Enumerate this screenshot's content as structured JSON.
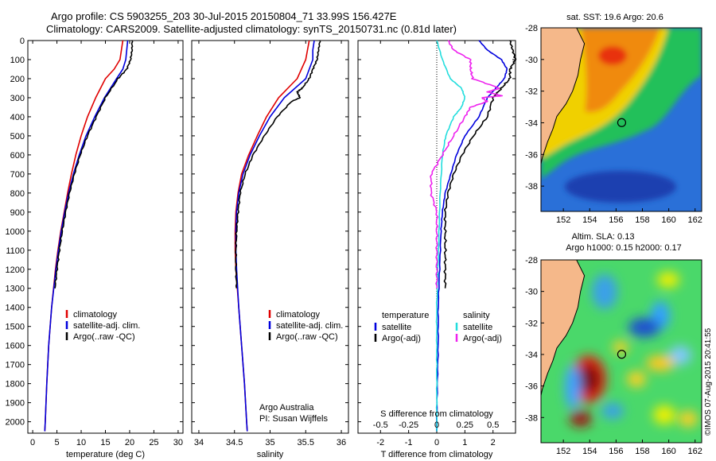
{
  "header": {
    "title_line1": "Argo profile: CS 5903255_203 30-Jul-2015 20150804_71 33.99S 156.427E",
    "title_line2": "Climatology: CARS2009. Satellite-adjusted climatology: synTS_20150731.nc (0.81d later)"
  },
  "footer": {
    "credit": "©IMOS 07-Aug-2015 20:41:55"
  },
  "colors": {
    "climatology": "#e00000",
    "satellite": "#0000dd",
    "argo": "#000000",
    "sat_sal_diff": "#22dddd",
    "argo_sal_diff": "#ee22ee",
    "land": "#f5b88a"
  },
  "chart_data": [
    {
      "id": "temperature",
      "type": "line",
      "xlabel": "temperature (deg C)",
      "xlim": [
        -1,
        31
      ],
      "ylim": [
        2060,
        0
      ],
      "xticks": [
        0,
        5,
        10,
        15,
        20,
        25,
        30
      ],
      "yticks": [
        0,
        100,
        200,
        300,
        400,
        500,
        600,
        700,
        800,
        900,
        1000,
        1100,
        1200,
        1300,
        1400,
        1500,
        1600,
        1700,
        1800,
        1900,
        2000
      ],
      "legend": {
        "position": "lower-left",
        "items": [
          "climatology",
          "satellite-adj. clim.",
          "Argo(..raw -QC)"
        ]
      },
      "series": [
        {
          "name": "climatology",
          "color": "#e00000",
          "depth": [
            0,
            100,
            150,
            200,
            300,
            400,
            500,
            600,
            700,
            800,
            900,
            1000,
            1100,
            1200,
            1400,
            1600,
            1800,
            2000,
            2050
          ],
          "values": [
            18.6,
            18.0,
            16.8,
            15.0,
            13.0,
            11.3,
            10.0,
            8.9,
            8.0,
            7.2,
            6.5,
            5.8,
            5.2,
            4.7,
            3.9,
            3.3,
            2.9,
            2.6,
            2.5
          ]
        },
        {
          "name": "satellite-adj. clim.",
          "color": "#0000dd",
          "depth": [
            0,
            100,
            150,
            200,
            300,
            400,
            500,
            600,
            700,
            800,
            900,
            1000,
            1100,
            1200,
            1400,
            1600,
            1800,
            2000,
            2050
          ],
          "values": [
            19.6,
            19.2,
            18.6,
            17.3,
            14.8,
            12.8,
            11.0,
            9.6,
            8.4,
            7.4,
            6.6,
            5.9,
            5.3,
            4.8,
            3.9,
            3.3,
            2.9,
            2.6,
            2.5
          ]
        },
        {
          "name": "Argo(..raw -QC)",
          "color": "#000000",
          "depth": [
            0,
            50,
            100,
            150,
            200,
            300,
            400,
            500,
            600,
            700,
            800,
            900,
            1000,
            1100,
            1200,
            1300
          ],
          "values": [
            20.5,
            20.5,
            20.2,
            19.4,
            17.6,
            15.0,
            13.1,
            11.3,
            9.8,
            8.6,
            7.6,
            6.8,
            6.1,
            5.5,
            5.0,
            4.6
          ]
        }
      ]
    },
    {
      "id": "salinity",
      "type": "line",
      "xlabel": "salinity",
      "xlim": [
        33.9,
        36.1
      ],
      "ylim": [
        2060,
        0
      ],
      "xticks": [
        34,
        34.5,
        35,
        35.5,
        36
      ],
      "legend": {
        "position": "lower-right",
        "items": [
          "climatology",
          "satellite-adj. clim.",
          "Argo(..raw -QC)"
        ]
      },
      "annotation": [
        "Argo Australia",
        "PI: Susan Wijffels"
      ],
      "series": [
        {
          "name": "climatology",
          "color": "#e00000",
          "depth": [
            0,
            100,
            200,
            300,
            400,
            500,
            600,
            700,
            800,
            900,
            1000,
            1100,
            1200,
            1400,
            1600,
            1800,
            2000,
            2050
          ],
          "values": [
            35.55,
            35.5,
            35.38,
            35.12,
            34.95,
            34.82,
            34.7,
            34.6,
            34.55,
            34.52,
            34.51,
            34.51,
            34.52,
            34.56,
            34.6,
            34.64,
            34.67,
            34.68
          ]
        },
        {
          "name": "satellite-adj. clim.",
          "color": "#0000dd",
          "depth": [
            0,
            50,
            100,
            200,
            300,
            400,
            500,
            600,
            700,
            800,
            900,
            1000,
            1100,
            1200,
            1400,
            1600,
            1800,
            2000,
            2050
          ],
          "values": [
            35.62,
            35.6,
            35.6,
            35.5,
            35.2,
            35.0,
            34.85,
            34.72,
            34.62,
            34.56,
            34.53,
            34.52,
            34.52,
            34.53,
            34.56,
            34.6,
            34.64,
            34.67,
            34.68
          ]
        },
        {
          "name": "Argo(..raw -QC)",
          "color": "#000000",
          "depth": [
            0,
            50,
            100,
            150,
            200,
            250,
            270,
            300,
            320,
            400,
            500,
            600,
            700,
            800,
            900,
            1000,
            1100,
            1200,
            1300
          ],
          "values": [
            35.7,
            35.68,
            35.66,
            35.6,
            35.55,
            35.45,
            35.38,
            35.42,
            35.3,
            35.1,
            34.92,
            34.76,
            34.65,
            34.58,
            34.55,
            34.53,
            34.52,
            34.52,
            34.53
          ]
        }
      ]
    },
    {
      "id": "difference",
      "type": "line",
      "xlabel": "T difference from climatology",
      "xlabel_top": "S difference from climatology",
      "xlim": [
        -2.8,
        2.8
      ],
      "ylim": [
        2060,
        0
      ],
      "xticks_T": [
        -2,
        -1,
        0,
        1,
        2
      ],
      "xticks_S": [
        -0.5,
        -0.25,
        0,
        0.25,
        0.5
      ],
      "legend": {
        "position": "lower-middle",
        "temperature_header": "temperature",
        "salinity_header": "salinity",
        "items": [
          "satellite",
          "Argo(-adj)",
          "satellite",
          "Argo(-adj)"
        ]
      },
      "series": [
        {
          "name": "T satellite",
          "color": "#0000dd",
          "depth": [
            0,
            50,
            100,
            150,
            200,
            250,
            300,
            400,
            500,
            600,
            700,
            800,
            900,
            1000,
            1200,
            1400,
            1600,
            1800,
            2000,
            2050
          ],
          "values": [
            1.5,
            1.8,
            2.3,
            2.5,
            2.4,
            2.1,
            1.8,
            1.5,
            1.0,
            0.7,
            0.5,
            0.3,
            0.2,
            0.15,
            0.1,
            0.05,
            0.05,
            0.02,
            0.0,
            0.0
          ]
        },
        {
          "name": "T Argo(-adj)",
          "color": "#000000",
          "depth": [
            0,
            50,
            100,
            150,
            200,
            250,
            300,
            400,
            500,
            600,
            700,
            800,
            900,
            1000,
            1100,
            1200,
            1300
          ],
          "values": [
            2.6,
            2.7,
            2.8,
            2.6,
            2.6,
            2.3,
            2.0,
            1.8,
            1.3,
            0.9,
            0.6,
            0.4,
            0.3,
            0.3,
            0.3,
            0.3,
            0.3
          ]
        },
        {
          "name": "S satellite",
          "color": "#22dddd",
          "depth": [
            0,
            100,
            200,
            250,
            300,
            350,
            400,
            500,
            600,
            800,
            1000,
            1200,
            1400,
            1600,
            1800,
            2000,
            2050
          ],
          "values": [
            0.0,
            0.05,
            0.12,
            0.22,
            0.25,
            0.22,
            0.15,
            0.08,
            0.05,
            0.03,
            0.02,
            0.01,
            0.0,
            0.0,
            0.0,
            0.0,
            0.0
          ]
        },
        {
          "name": "S Argo(-adj)",
          "color": "#ee22ee",
          "depth": [
            0,
            50,
            100,
            150,
            200,
            250,
            270,
            290,
            300,
            320,
            350,
            400,
            500,
            600,
            700,
            800,
            900,
            1000,
            1100,
            1200,
            1300
          ],
          "values": [
            0.1,
            0.15,
            0.3,
            0.3,
            0.32,
            0.56,
            0.45,
            0.58,
            0.4,
            0.45,
            0.3,
            0.25,
            0.15,
            0.05,
            -0.05,
            -0.05,
            0.0,
            0.0,
            0.0,
            0.0,
            0.0
          ]
        }
      ]
    },
    {
      "id": "sst_map",
      "type": "heatmap",
      "title": "sat. SST: 19.6  Argo: 20.6",
      "xlim": [
        150.3,
        162.5
      ],
      "ylim": [
        -39.6,
        -28
      ],
      "xticks": [
        152,
        154,
        156,
        158,
        160,
        162
      ],
      "yticks": [
        -30,
        -32,
        -34,
        -36,
        -38
      ],
      "float_position": {
        "lon": 156.427,
        "lat": -33.99
      }
    },
    {
      "id": "sla_map",
      "type": "heatmap",
      "title_line1": "Altim. SLA: 0.13",
      "title_line2": "Argo h1000: 0.15  h2000: 0.17",
      "xlim": [
        150.3,
        162.5
      ],
      "ylim": [
        -39.6,
        -28
      ],
      "xticks": [
        152,
        154,
        156,
        158,
        160,
        162
      ],
      "yticks": [
        -30,
        -32,
        -34,
        -36,
        -38
      ],
      "float_position": {
        "lon": 156.427,
        "lat": -33.99
      }
    }
  ]
}
